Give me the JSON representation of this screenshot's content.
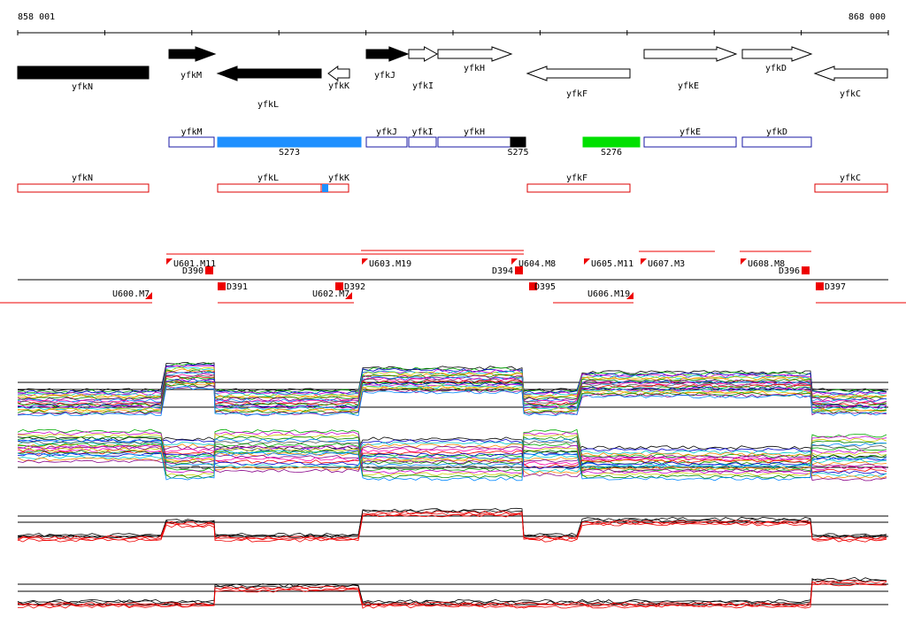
{
  "axis": {
    "start": "858 001",
    "end": "868 000"
  },
  "genes": [
    "yfkN",
    "yfkM",
    "yfkL",
    "yfkK",
    "yfkJ",
    "yfkI",
    "yfkH",
    "yfkF",
    "yfkE",
    "yfkD",
    "yfkC"
  ],
  "segments": [
    "yfkM",
    "S273",
    "yfkJ",
    "yfkI",
    "yfkH",
    "S275",
    "S276",
    "yfkE",
    "yfkD"
  ],
  "antisense": [
    "yfkN",
    "yfkL",
    "yfkK",
    "yfkF",
    "yfkC"
  ],
  "shifts": [
    "U601.M11",
    "U603.M19",
    "U604.M8",
    "U605.M11",
    "U607.M3",
    "U608.M8",
    "U600.M7",
    "U602.M7",
    "U606.M19"
  ],
  "breaks": [
    "D390",
    "D391",
    "D392",
    "D394",
    "D395",
    "D396",
    "D397"
  ]
}
